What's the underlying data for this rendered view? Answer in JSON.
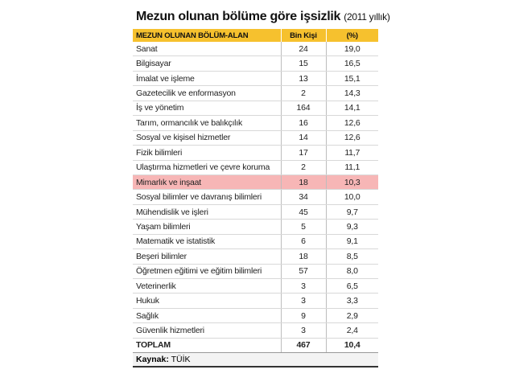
{
  "title": "Mezun olunan bölüme göre işsizlik",
  "subtitle": "(2011 yıllık)",
  "columns": [
    "MEZUN OLUNAN BÖLÜM-ALAN",
    "Bin Kişi",
    "(%)"
  ],
  "rows": [
    {
      "name": "Sanat",
      "count": "24",
      "pct": "19,0"
    },
    {
      "name": "Bilgisayar",
      "count": "15",
      "pct": "16,5"
    },
    {
      "name": "İmalat ve işleme",
      "count": "13",
      "pct": "15,1"
    },
    {
      "name": "Gazetecilik ve enformasyon",
      "count": "2",
      "pct": "14,3"
    },
    {
      "name": "İş ve yönetim",
      "count": "164",
      "pct": "14,1"
    },
    {
      "name": "Tarım, ormancılık ve balıkçılık",
      "count": "16",
      "pct": "12,6"
    },
    {
      "name": "Sosyal ve kişisel hizmetler",
      "count": "14",
      "pct": "12,6"
    },
    {
      "name": "Fizik bilimleri",
      "count": "17",
      "pct": "11,7"
    },
    {
      "name": "Ulaştırma hizmetleri ve çevre koruma",
      "count": "2",
      "pct": "11,1"
    },
    {
      "name": "Mimarlık ve inşaat",
      "count": "18",
      "pct": "10,3"
    },
    {
      "name": "Sosyal bilimler ve davranış bilimleri",
      "count": "34",
      "pct": "10,0"
    },
    {
      "name": "Mühendislik ve işleri",
      "count": "45",
      "pct": "9,7"
    },
    {
      "name": "Yaşam bilimleri",
      "count": "5",
      "pct": "9,3"
    },
    {
      "name": "Matematik ve istatistik",
      "count": "6",
      "pct": "9,1"
    },
    {
      "name": "Beşeri bilimler",
      "count": "18",
      "pct": "8,5"
    },
    {
      "name": "Öğretmen eğitimi ve eğitim bilimleri",
      "count": "57",
      "pct": "8,0"
    },
    {
      "name": "Veterinerlik",
      "count": "3",
      "pct": "6,5"
    },
    {
      "name": "Hukuk",
      "count": "3",
      "pct": "3,3"
    },
    {
      "name": "Sağlık",
      "count": "9",
      "pct": "2,9"
    },
    {
      "name": "Güvenlik hizmetleri",
      "count": "3",
      "pct": "2,4"
    }
  ],
  "highlight_row": "Mimarlık ve inşaat",
  "highlight_color": "#f7b6b6",
  "header_color": "#f6c12e",
  "total": {
    "name": "TOPLAM",
    "count": "467",
    "pct": "10,4"
  },
  "source": {
    "label": "Kaynak:",
    "value": "TÜİK"
  }
}
